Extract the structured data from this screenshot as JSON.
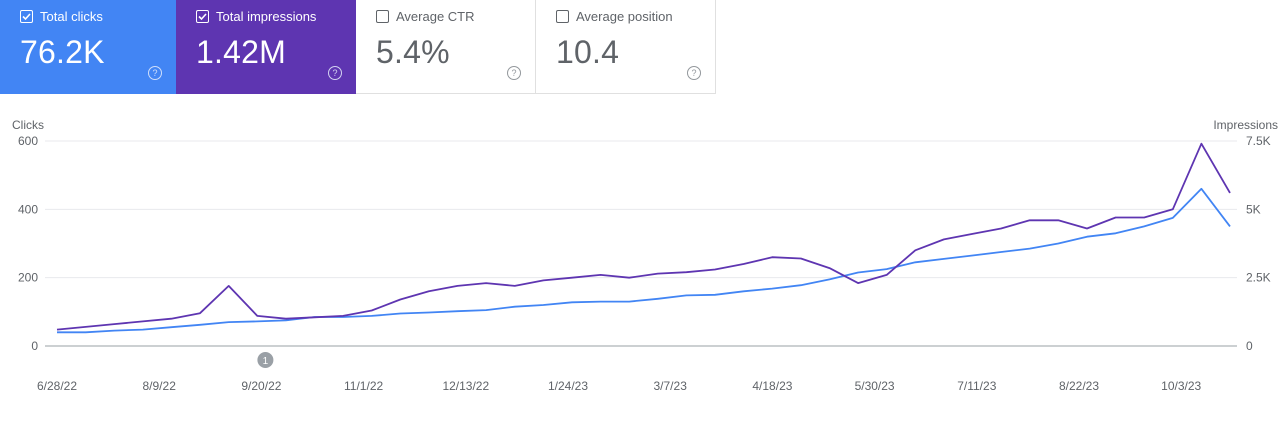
{
  "metrics": [
    {
      "label": "Total clicks",
      "value": "76.2K",
      "checked": true,
      "color": "#4285f4"
    },
    {
      "label": "Total impressions",
      "value": "1.42M",
      "checked": true,
      "color": "#5e35b1"
    },
    {
      "label": "Average CTR",
      "value": "5.4%",
      "checked": false
    },
    {
      "label": "Average position",
      "value": "10.4",
      "checked": false
    }
  ],
  "help_glyph": "?",
  "chart_data": {
    "type": "line",
    "y_left_label": "Clicks",
    "y_right_label": "Impressions",
    "y_left_ticks": [
      "600",
      "400",
      "200",
      "0"
    ],
    "y_right_ticks": [
      "7.5K",
      "5K",
      "2.5K",
      "0"
    ],
    "y_left_range": [
      0,
      600
    ],
    "y_right_range": [
      0,
      7500
    ],
    "x_ticks": [
      "6/28/22",
      "8/9/22",
      "9/20/22",
      "11/1/22",
      "12/13/22",
      "1/24/23",
      "3/7/23",
      "4/18/23",
      "5/30/23",
      "7/11/23",
      "8/22/23",
      "10/3/23"
    ],
    "annotation": {
      "label": "1",
      "date": "9/20/22"
    },
    "grid": true,
    "series": [
      {
        "name": "Total clicks",
        "axis": "left",
        "color": "#4285f4",
        "values": [
          40,
          40,
          45,
          48,
          55,
          62,
          70,
          72,
          75,
          85,
          85,
          88,
          95,
          98,
          102,
          105,
          115,
          120,
          128,
          130,
          130,
          138,
          148,
          150,
          160,
          168,
          178,
          195,
          215,
          225,
          245,
          255,
          265,
          275,
          285,
          300,
          320,
          330,
          350,
          375,
          460,
          350
        ]
      },
      {
        "name": "Total impressions",
        "axis": "right",
        "color": "#5e35b1",
        "values": [
          600,
          700,
          800,
          900,
          1000,
          1200,
          2200,
          1100,
          1000,
          1050,
          1100,
          1300,
          1700,
          2000,
          2200,
          2300,
          2200,
          2400,
          2500,
          2600,
          2500,
          2650,
          2700,
          2800,
          3000,
          3250,
          3200,
          2850,
          2300,
          2600,
          3500,
          3900,
          4100,
          4300,
          4600,
          4600,
          4300,
          4700,
          4700,
          5000,
          7400,
          5600
        ]
      }
    ]
  }
}
